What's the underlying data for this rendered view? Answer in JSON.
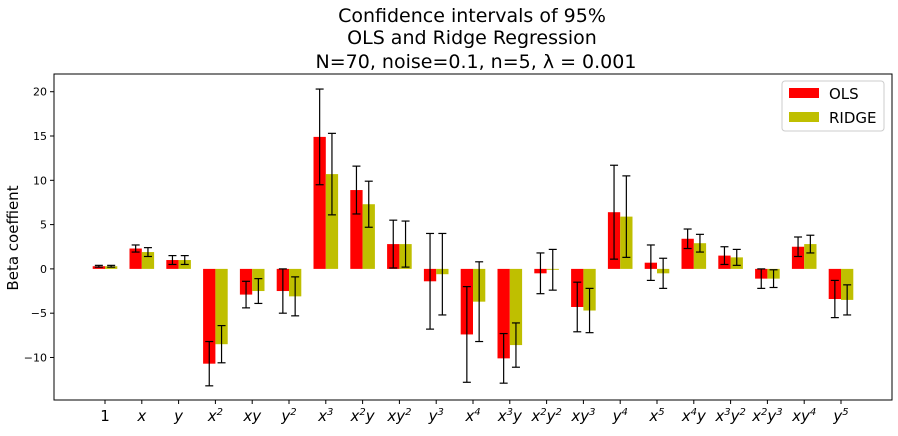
{
  "chart_data": {
    "type": "bar",
    "title_lines": [
      "Confidence intervals of 95%",
      "OLS and Ridge Regression",
      "N=70, noise=0.1, n=5, λ =  0.001"
    ],
    "xlabel": "",
    "ylabel": "Beta coeffient",
    "ylim": [
      -14.8,
      22
    ],
    "yticks": [
      -10,
      -5,
      0,
      5,
      10,
      15,
      20
    ],
    "grid": false,
    "legend_position": "top-right",
    "categories": [
      {
        "base": "1",
        "exp": ""
      },
      {
        "base": "x",
        "exp": ""
      },
      {
        "base": "y",
        "exp": ""
      },
      {
        "base": "x",
        "exp": "2"
      },
      {
        "base": "xy",
        "exp": ""
      },
      {
        "base": "y",
        "exp": "2"
      },
      {
        "base": "x",
        "exp": "3"
      },
      {
        "base": "x",
        "exp": "2",
        "tail": "y"
      },
      {
        "base": "xy",
        "exp": "2"
      },
      {
        "base": "y",
        "exp": "3"
      },
      {
        "base": "x",
        "exp": "4"
      },
      {
        "base": "x",
        "exp": "3",
        "tail": "y"
      },
      {
        "base": "x",
        "exp": "2",
        "tail": "y",
        "exp2": "2"
      },
      {
        "base": "xy",
        "exp": "3"
      },
      {
        "base": "y",
        "exp": "4"
      },
      {
        "base": "x",
        "exp": "5"
      },
      {
        "base": "x",
        "exp": "4",
        "tail": "y"
      },
      {
        "base": "x",
        "exp": "3",
        "tail": "y",
        "exp2": "2"
      },
      {
        "base": "x",
        "exp": "2",
        "tail": "y",
        "exp2": "3"
      },
      {
        "base": "xy",
        "exp": "4"
      },
      {
        "base": "y",
        "exp": "5"
      }
    ],
    "series": [
      {
        "name": "OLS",
        "color": "#ff0000",
        "values": [
          0.3,
          2.3,
          1.0,
          -10.7,
          -2.9,
          -2.5,
          14.9,
          8.9,
          2.8,
          -1.4,
          -7.4,
          -10.1,
          -0.5,
          -4.3,
          6.4,
          0.7,
          3.4,
          1.5,
          -1.1,
          2.5,
          -3.4
        ],
        "errors": [
          0.1,
          0.4,
          0.5,
          2.5,
          1.5,
          2.5,
          5.4,
          2.7,
          2.7,
          5.4,
          5.4,
          2.8,
          2.3,
          2.8,
          5.3,
          2.0,
          1.1,
          1.0,
          1.1,
          1.1,
          2.1
        ]
      },
      {
        "name": "RIDGE",
        "color": "#bfbf00",
        "values": [
          0.3,
          1.9,
          1.0,
          -8.5,
          -2.5,
          -3.1,
          10.7,
          7.3,
          2.8,
          -0.6,
          -3.7,
          -8.6,
          -0.1,
          -4.7,
          5.9,
          -0.5,
          2.9,
          1.3,
          -1.1,
          2.8,
          -3.5
        ],
        "errors": [
          0.1,
          0.5,
          0.5,
          2.1,
          1.4,
          2.2,
          4.6,
          2.6,
          2.6,
          4.6,
          4.5,
          2.5,
          2.3,
          2.5,
          4.6,
          1.7,
          1.0,
          0.9,
          1.0,
          1.0,
          1.7
        ]
      }
    ]
  }
}
